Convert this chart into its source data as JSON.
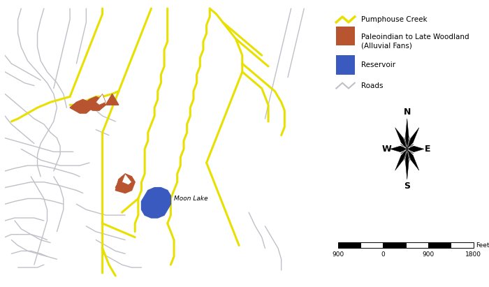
{
  "background_color": "#ffffff",
  "map_bg": "#ffffff",
  "border_color": "#000000",
  "road_color": "#c0c0c8",
  "road_lw": 1.0,
  "creek_color": "#e8e000",
  "creek_lw": 2.2,
  "alluvial_color": "#b85530",
  "reservoir_color": "#3a5abf",
  "moon_lake_label": "Moon Lake",
  "legend_creek_label": "Pumphouse Creek",
  "legend_alluvial_label": "Paleoindian to Late Woodland\n(Alluvial Fans)",
  "legend_reservoir_label": "Reservoir",
  "legend_roads_label": "Roads"
}
